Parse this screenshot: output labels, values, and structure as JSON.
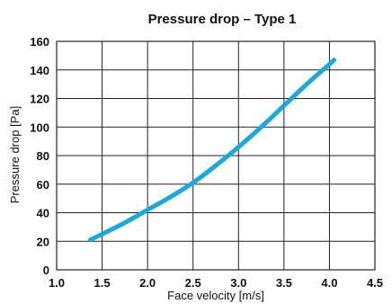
{
  "chart_data": {
    "type": "line",
    "title": "Pressure drop – Type 1",
    "xlabel": "Face velocity [m/s]",
    "ylabel": "Pressure drop  [Pa]",
    "xlim": [
      1.0,
      4.5
    ],
    "ylim": [
      0,
      160
    ],
    "x_ticks": [
      "1.0",
      "1.5",
      "2.0",
      "2.5",
      "3.0",
      "3.5",
      "4.0",
      "4.5"
    ],
    "y_ticks": [
      "0",
      "20",
      "40",
      "60",
      "80",
      "100",
      "120",
      "140",
      "160"
    ],
    "grid": true,
    "line_color": "#19a8e0",
    "series": [
      {
        "x": [
          1.37,
          1.5,
          1.75,
          2.0,
          2.25,
          2.5,
          2.75,
          3.0,
          3.25,
          3.5,
          3.75,
          4.0,
          4.05
        ],
        "y": [
          21,
          25,
          33,
          42,
          51,
          61,
          73,
          86,
          100,
          115,
          130,
          144,
          147
        ]
      }
    ]
  }
}
